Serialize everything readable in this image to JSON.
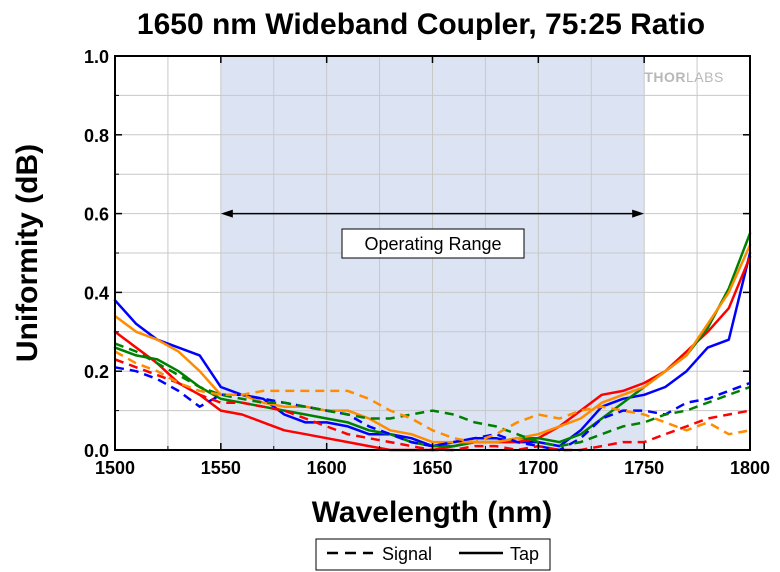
{
  "chart_data": {
    "type": "line",
    "title": "1650 nm Wideband Coupler, 75:25 Ratio",
    "xlabel": "Wavelength (nm)",
    "ylabel": "Uniformity (dB)",
    "xlim": [
      1500,
      1800
    ],
    "ylim": [
      0,
      1.0
    ],
    "x_ticks": [
      1500,
      1550,
      1600,
      1650,
      1700,
      1750,
      1800
    ],
    "x_tick_labels": [
      "1500",
      "1550",
      "1600",
      "1650",
      "1700",
      "1750",
      "1800"
    ],
    "y_ticks": [
      0,
      0.2,
      0.4,
      0.6,
      0.8,
      1.0
    ],
    "y_tick_labels": [
      "0.0",
      "0.2",
      "0.4",
      "0.6",
      "0.8",
      "1.0"
    ],
    "grid": true,
    "shaded_region": {
      "x": [
        1550,
        1750
      ],
      "color": "#dce4f4"
    },
    "annotation": {
      "text": "Operating Range",
      "arrow_x": [
        1550,
        1750
      ],
      "arrow_y": 0.6
    },
    "logo": {
      "bold": "THOR",
      "light": "LABS"
    },
    "legend": {
      "position": "bottom",
      "entries": [
        {
          "label": "Signal",
          "style": "dashed"
        },
        {
          "label": "Tap",
          "style": "solid"
        }
      ]
    },
    "series": [
      {
        "color": "#0000ff",
        "style": "solid",
        "x": [
          1500,
          1510,
          1520,
          1530,
          1540,
          1550,
          1560,
          1570,
          1580,
          1590,
          1600,
          1610,
          1620,
          1630,
          1640,
          1650,
          1660,
          1670,
          1680,
          1690,
          1700,
          1710,
          1720,
          1730,
          1740,
          1750,
          1760,
          1770,
          1780,
          1790,
          1800
        ],
        "y": [
          0.38,
          0.32,
          0.28,
          0.26,
          0.24,
          0.16,
          0.14,
          0.13,
          0.09,
          0.07,
          0.07,
          0.06,
          0.04,
          0.04,
          0.03,
          0.01,
          0.02,
          0.03,
          0.03,
          0.02,
          0.02,
          0.01,
          0.05,
          0.11,
          0.13,
          0.14,
          0.16,
          0.2,
          0.26,
          0.28,
          0.5
        ]
      },
      {
        "color": "#ff0000",
        "style": "solid",
        "x": [
          1500,
          1510,
          1520,
          1530,
          1540,
          1550,
          1560,
          1570,
          1580,
          1590,
          1600,
          1610,
          1620,
          1630,
          1640,
          1650,
          1660,
          1670,
          1680,
          1690,
          1700,
          1710,
          1720,
          1730,
          1740,
          1750,
          1760,
          1770,
          1780,
          1790,
          1800
        ],
        "y": [
          0.3,
          0.26,
          0.22,
          0.17,
          0.14,
          0.1,
          0.09,
          0.07,
          0.05,
          0.04,
          0.03,
          0.02,
          0.01,
          0.0,
          0.0,
          0.0,
          0.01,
          0.02,
          0.02,
          0.02,
          0.03,
          0.06,
          0.1,
          0.14,
          0.15,
          0.17,
          0.2,
          0.25,
          0.3,
          0.36,
          0.49
        ]
      },
      {
        "color": "#008000",
        "style": "solid",
        "x": [
          1500,
          1510,
          1520,
          1530,
          1540,
          1550,
          1560,
          1570,
          1580,
          1590,
          1600,
          1610,
          1620,
          1630,
          1640,
          1650,
          1660,
          1670,
          1680,
          1690,
          1700,
          1710,
          1720,
          1730,
          1740,
          1750,
          1760,
          1770,
          1780,
          1790,
          1800
        ],
        "y": [
          0.26,
          0.24,
          0.23,
          0.2,
          0.16,
          0.13,
          0.12,
          0.11,
          0.1,
          0.09,
          0.08,
          0.07,
          0.05,
          0.04,
          0.02,
          0.01,
          0.01,
          0.02,
          0.02,
          0.03,
          0.03,
          0.02,
          0.04,
          0.08,
          0.12,
          0.16,
          0.2,
          0.24,
          0.31,
          0.41,
          0.55
        ]
      },
      {
        "color": "#ff8c00",
        "style": "solid",
        "x": [
          1500,
          1510,
          1520,
          1530,
          1540,
          1550,
          1560,
          1570,
          1580,
          1590,
          1600,
          1610,
          1620,
          1630,
          1640,
          1650,
          1660,
          1670,
          1680,
          1690,
          1700,
          1710,
          1720,
          1730,
          1740,
          1750,
          1760,
          1770,
          1780,
          1790,
          1800
        ],
        "y": [
          0.34,
          0.3,
          0.28,
          0.25,
          0.2,
          0.14,
          0.14,
          0.12,
          0.11,
          0.11,
          0.1,
          0.1,
          0.08,
          0.05,
          0.04,
          0.02,
          0.02,
          0.02,
          0.02,
          0.03,
          0.04,
          0.06,
          0.08,
          0.12,
          0.14,
          0.16,
          0.2,
          0.24,
          0.32,
          0.4,
          0.52
        ]
      },
      {
        "color": "#0000ff",
        "style": "dashed",
        "x": [
          1500,
          1510,
          1520,
          1530,
          1540,
          1550,
          1560,
          1570,
          1580,
          1590,
          1600,
          1610,
          1620,
          1630,
          1640,
          1650,
          1660,
          1670,
          1680,
          1690,
          1700,
          1710,
          1720,
          1730,
          1740,
          1750,
          1760,
          1770,
          1780,
          1790,
          1800
        ],
        "y": [
          0.21,
          0.2,
          0.18,
          0.15,
          0.11,
          0.14,
          0.14,
          0.13,
          0.12,
          0.11,
          0.1,
          0.09,
          0.06,
          0.04,
          0.02,
          0.01,
          0.02,
          0.03,
          0.04,
          0.02,
          0.01,
          0.0,
          0.03,
          0.08,
          0.1,
          0.1,
          0.09,
          0.12,
          0.13,
          0.15,
          0.17
        ]
      },
      {
        "color": "#ff0000",
        "style": "dashed",
        "x": [
          1500,
          1510,
          1520,
          1530,
          1540,
          1550,
          1560,
          1570,
          1580,
          1590,
          1600,
          1610,
          1620,
          1630,
          1640,
          1650,
          1660,
          1670,
          1680,
          1690,
          1700,
          1710,
          1720,
          1730,
          1740,
          1750,
          1760,
          1770,
          1780,
          1790,
          1800
        ],
        "y": [
          0.23,
          0.21,
          0.19,
          0.17,
          0.14,
          0.12,
          0.12,
          0.11,
          0.1,
          0.08,
          0.06,
          0.04,
          0.03,
          0.02,
          0.01,
          0.0,
          0.0,
          0.01,
          0.01,
          0.0,
          0.01,
          0.0,
          0.0,
          0.01,
          0.02,
          0.02,
          0.04,
          0.06,
          0.08,
          0.09,
          0.1
        ]
      },
      {
        "color": "#008000",
        "style": "dashed",
        "x": [
          1500,
          1510,
          1520,
          1530,
          1540,
          1550,
          1560,
          1570,
          1580,
          1590,
          1600,
          1610,
          1620,
          1630,
          1640,
          1650,
          1660,
          1670,
          1680,
          1690,
          1700,
          1710,
          1720,
          1730,
          1740,
          1750,
          1760,
          1770,
          1780,
          1790,
          1800
        ],
        "y": [
          0.27,
          0.25,
          0.22,
          0.19,
          0.16,
          0.14,
          0.13,
          0.12,
          0.12,
          0.11,
          0.1,
          0.09,
          0.08,
          0.08,
          0.09,
          0.1,
          0.09,
          0.07,
          0.06,
          0.04,
          0.02,
          0.01,
          0.02,
          0.04,
          0.06,
          0.07,
          0.09,
          0.1,
          0.12,
          0.14,
          0.16
        ]
      },
      {
        "color": "#ff8c00",
        "style": "dashed",
        "x": [
          1500,
          1510,
          1520,
          1530,
          1540,
          1550,
          1560,
          1570,
          1580,
          1590,
          1600,
          1610,
          1620,
          1630,
          1640,
          1650,
          1660,
          1670,
          1680,
          1690,
          1700,
          1710,
          1720,
          1730,
          1740,
          1750,
          1760,
          1770,
          1780,
          1790,
          1800
        ],
        "y": [
          0.25,
          0.22,
          0.2,
          0.17,
          0.15,
          0.14,
          0.14,
          0.15,
          0.15,
          0.15,
          0.15,
          0.15,
          0.13,
          0.1,
          0.08,
          0.05,
          0.03,
          0.02,
          0.04,
          0.07,
          0.09,
          0.08,
          0.1,
          0.11,
          0.1,
          0.09,
          0.07,
          0.05,
          0.07,
          0.04,
          0.05
        ]
      }
    ]
  }
}
